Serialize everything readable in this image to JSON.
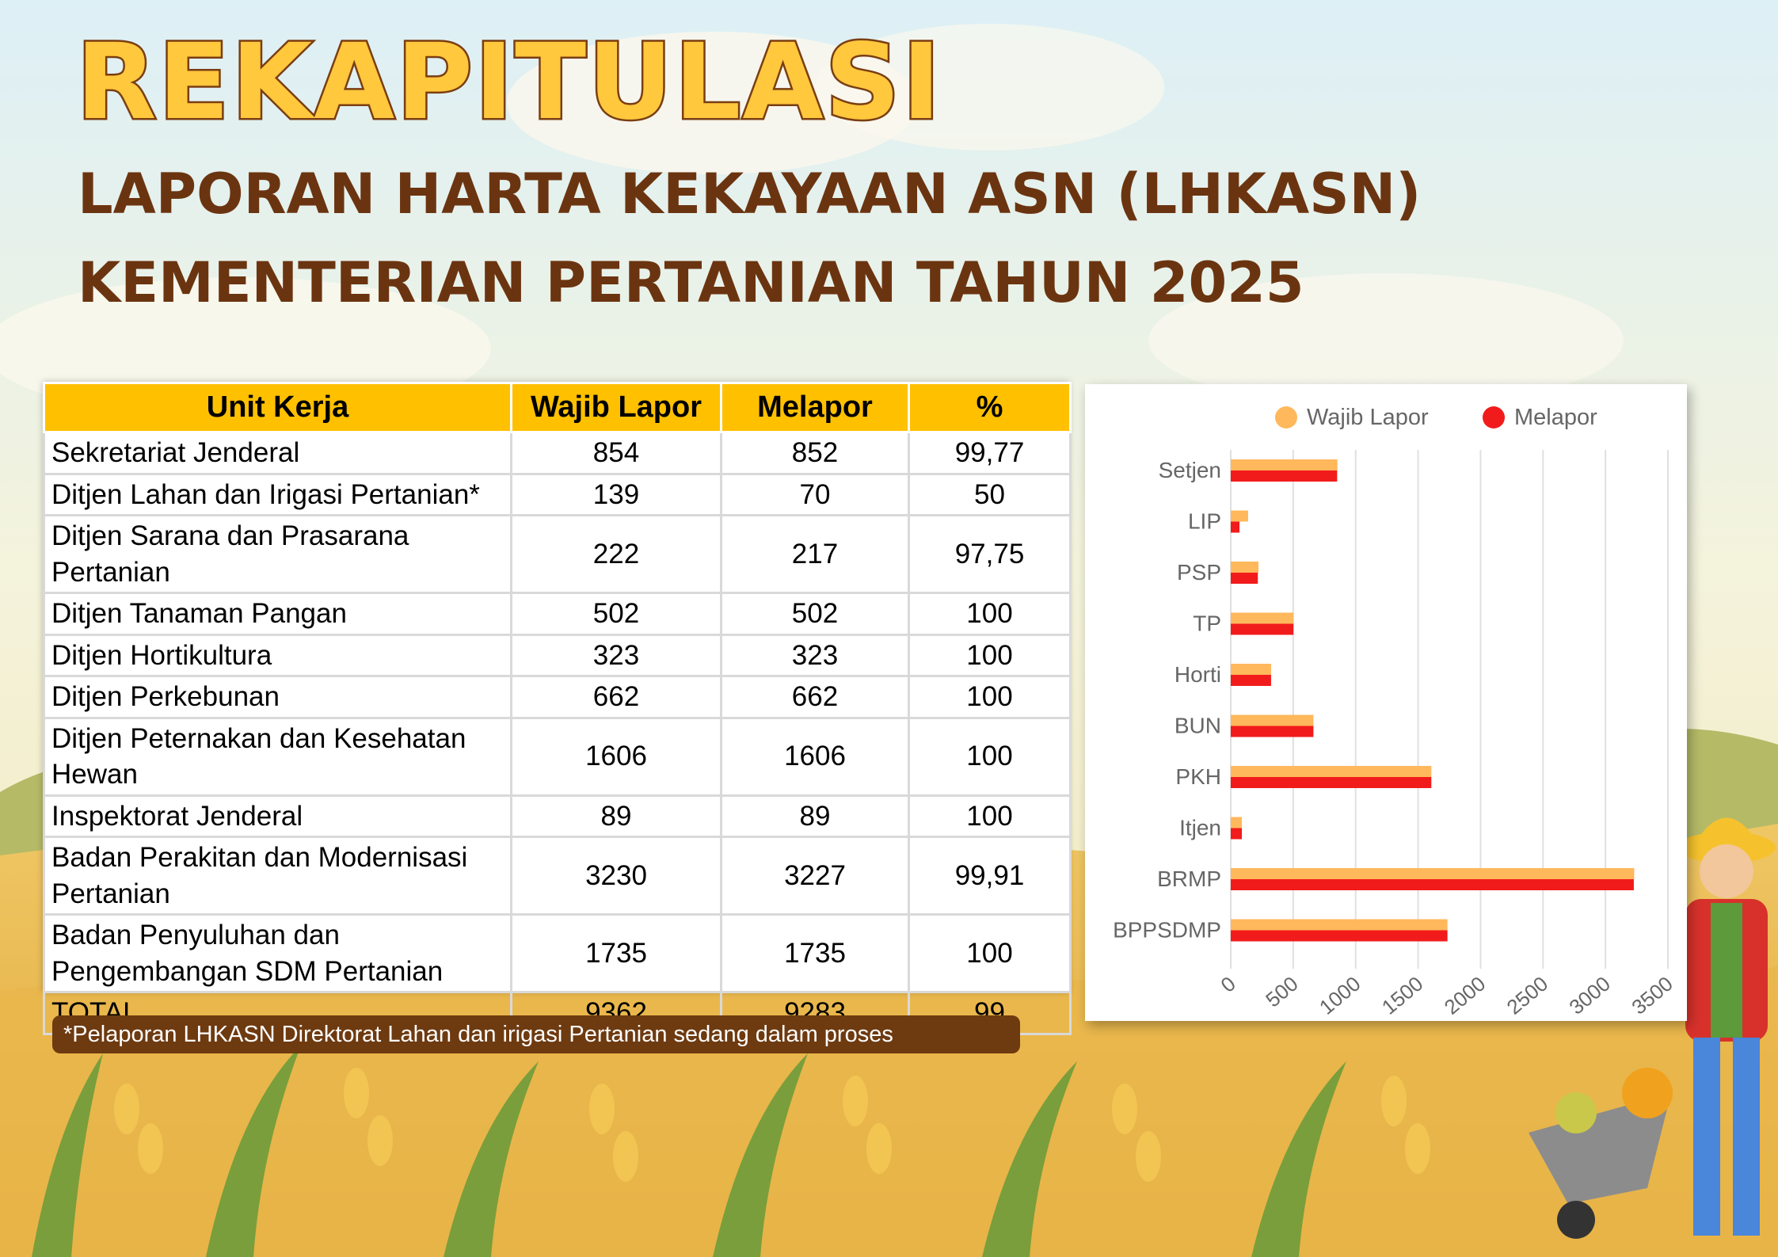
{
  "header": {
    "title": "REKAPITULASI",
    "subtitle_line1": "LAPORAN HARTA KEKAYAAN ASN (LHKASN)",
    "subtitle_line2": "KEMENTERIAN PERTANIAN TAHUN 2025"
  },
  "table": {
    "headers": [
      "Unit Kerja",
      "Wajib Lapor",
      "Melapor",
      "%"
    ],
    "rows": [
      [
        "Sekretariat Jenderal",
        "854",
        "852",
        "99,77"
      ],
      [
        "Ditjen Lahan dan Irigasi Pertanian*",
        "139",
        "70",
        "50"
      ],
      [
        "Ditjen Sarana dan Prasarana Pertanian",
        "222",
        "217",
        "97,75"
      ],
      [
        "Ditjen Tanaman Pangan",
        "502",
        "502",
        "100"
      ],
      [
        "Ditjen Hortikultura",
        "323",
        "323",
        "100"
      ],
      [
        "Ditjen Perkebunan",
        "662",
        "662",
        "100"
      ],
      [
        "Ditjen Peternakan dan Kesehatan Hewan",
        "1606",
        "1606",
        "100"
      ],
      [
        "Inspektorat Jenderal",
        "89",
        "89",
        "100"
      ],
      [
        "Badan Perakitan dan Modernisasi Pertanian",
        "3230",
        "3227",
        "99,91"
      ],
      [
        "Badan Penyuluhan dan Pengembangan SDM Pertanian",
        "1735",
        "1735",
        "100"
      ],
      [
        "TOTAL",
        "9362",
        "9283",
        "99"
      ]
    ]
  },
  "footnote": "*Pelaporan LHKASN Direktorat Lahan dan irigasi Pertanian sedang dalam proses",
  "chart_data": {
    "type": "bar",
    "orientation": "horizontal",
    "categories": [
      "Setjen",
      "LIP",
      "PSP",
      "TP",
      "Horti",
      "BUN",
      "PKH",
      "Itjen",
      "BRMP",
      "BPPSDMP"
    ],
    "series": [
      {
        "name": "Wajib Lapor",
        "color": "#FFB85C",
        "values": [
          854,
          139,
          222,
          502,
          323,
          662,
          1606,
          89,
          3230,
          1735
        ]
      },
      {
        "name": "Melapor",
        "color": "#F21B1B",
        "values": [
          852,
          70,
          217,
          502,
          323,
          662,
          1606,
          89,
          3227,
          1735
        ]
      }
    ],
    "xlim": [
      0,
      3500
    ],
    "x_ticks": [
      "0",
      "500",
      "1000",
      "1500",
      "2000",
      "2500",
      "3000",
      "3500"
    ],
    "grid": true,
    "legend": "top"
  },
  "colors": {
    "title_fill": "#FFC83D",
    "title_stroke": "#7A3E12",
    "subtitle": "#6B3410",
    "table_header": "#FFC000",
    "footnote_bg": "#6E3A10"
  }
}
